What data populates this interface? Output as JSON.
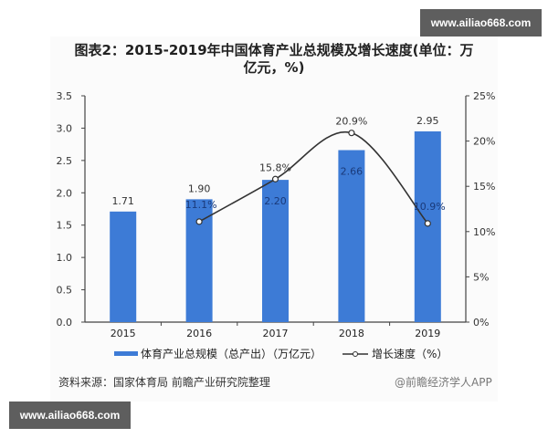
{
  "watermark": {
    "text": "www.ailiao668.com"
  },
  "title": {
    "line1": "图表2：2015-2019年中国体育产业总规模及增长速度(单位：万",
    "line2": "亿元，%)"
  },
  "source": "资料来源：国家体育局 前瞻产业研究院整理",
  "credit": "@前瞻经济学人APP",
  "colors": {
    "bar": "#3d7bd6",
    "line": "#333333",
    "marker_fill": "#ffffff"
  },
  "chart_data": {
    "type": "bar",
    "title": "图表2：2015-2019年中国体育产业总规模及增长速度(单位：万亿元，%)",
    "categories": [
      "2015",
      "2016",
      "2017",
      "2018",
      "2019"
    ],
    "series": [
      {
        "name": "体育产业总规模（总产出）（万亿元）",
        "type": "bar",
        "axis": "left",
        "values": [
          1.71,
          1.9,
          2.2,
          2.66,
          2.95
        ],
        "labels": [
          "1.71",
          "1.90",
          "2.20",
          "2.66",
          "2.95"
        ]
      },
      {
        "name": "增长速度（%）",
        "type": "line",
        "axis": "right",
        "values": [
          null,
          11.1,
          15.8,
          20.9,
          10.9
        ],
        "labels": [
          "",
          "11.1%",
          "15.8%",
          "20.9%",
          "10.9%"
        ]
      }
    ],
    "left_axis": {
      "ylim": [
        0,
        3.5
      ],
      "ticks": [
        "0.0",
        "0.5",
        "1.0",
        "1.5",
        "2.0",
        "2.5",
        "3.0",
        "3.5"
      ]
    },
    "right_axis": {
      "ylim": [
        0,
        25
      ],
      "ticks": [
        "0%",
        "5%",
        "10%",
        "15%",
        "20%",
        "25%"
      ]
    },
    "legend": [
      {
        "label": "体育产业总规模（总产出）（万亿元）",
        "kind": "bar"
      },
      {
        "label": "增长速度（%）",
        "kind": "line"
      }
    ],
    "legend_position": "bottom",
    "grid": false
  }
}
